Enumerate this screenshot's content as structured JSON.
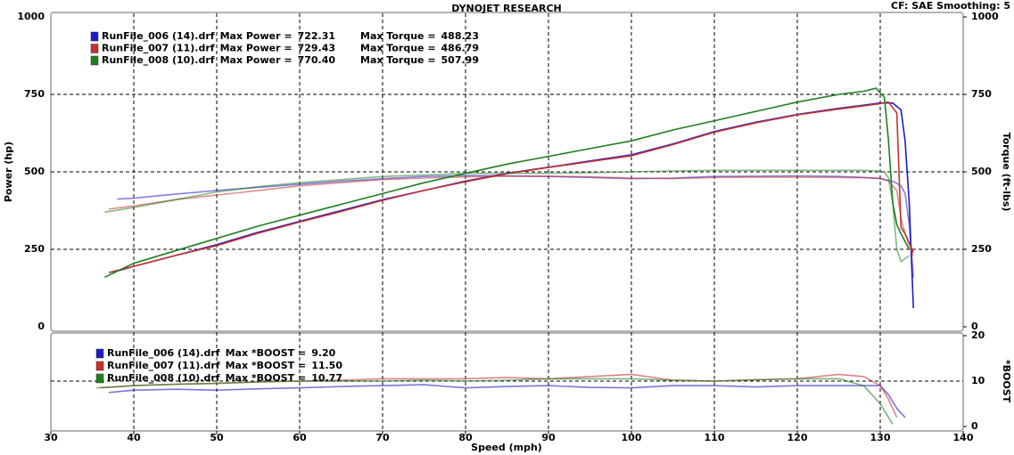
{
  "header": {
    "title": "DYNOJET RESEARCH",
    "settings": "CF: SAE  Smoothing: 5"
  },
  "chart_data": [
    {
      "type": "line",
      "y_label": "Power (hp)",
      "y2_label": "Torque (ft-lbs)",
      "xlim": [
        30,
        140
      ],
      "xticks": [
        40,
        50,
        60,
        70,
        80,
        90,
        100,
        110,
        120,
        130
      ],
      "ylim": [
        0,
        1000
      ],
      "yticks": [
        0,
        250,
        500,
        750,
        1000
      ],
      "y2lim": [
        0,
        1000
      ],
      "y2ticks": [
        0,
        250,
        500,
        750,
        1000
      ],
      "grid": true,
      "legend_labels": {
        "max_power": "Max Power =",
        "max_torque": "Max Torque ="
      },
      "series": [
        {
          "name": "RunFile_006 (14).drf",
          "color": "#1c1cc8",
          "max_power": 722.31,
          "max_torque": 488.23,
          "x": [
            38,
            40,
            45,
            50,
            55,
            60,
            65,
            70,
            75,
            80,
            85,
            90,
            95,
            100,
            105,
            110,
            115,
            120,
            125,
            128,
            130,
            131.5,
            132.5,
            133,
            133.5,
            134
          ],
          "values": [
            180,
            195,
            230,
            265,
            305,
            340,
            375,
            410,
            440,
            470,
            495,
            515,
            535,
            555,
            590,
            630,
            660,
            685,
            705,
            715,
            722,
            722,
            700,
            600,
            400,
            60
          ],
          "y2_values": [
            412,
            415,
            428,
            440,
            450,
            460,
            470,
            478,
            485,
            488,
            487,
            485,
            482,
            478,
            480,
            485,
            486,
            487,
            485,
            482,
            478,
            470,
            455,
            430,
            330,
            160
          ]
        },
        {
          "name": "RunFile_007 (11).drf",
          "color": "#c83030",
          "max_power": 729.43,
          "max_torque": 486.79,
          "x": [
            37,
            40,
            45,
            50,
            55,
            60,
            65,
            70,
            75,
            80,
            85,
            90,
            95,
            100,
            105,
            110,
            115,
            120,
            125,
            128,
            130,
            131,
            132,
            132.5,
            133,
            134
          ],
          "values": [
            175,
            195,
            230,
            262,
            302,
            338,
            372,
            408,
            440,
            468,
            494,
            514,
            533,
            552,
            588,
            628,
            658,
            684,
            703,
            713,
            720,
            725,
            690,
            320,
            300,
            240
          ],
          "y2_values": [
            380,
            390,
            410,
            425,
            440,
            455,
            465,
            475,
            480,
            484,
            486,
            486,
            484,
            480,
            478,
            482,
            483,
            483,
            482,
            481,
            480,
            470,
            440,
            350,
            300,
            230
          ]
        },
        {
          "name": "RunFile_008 (10).drf",
          "color": "#1f7f1f",
          "max_power": {
            "value": 770.4,
            "label": "770.40"
          },
          "max_torque": 507.99,
          "x": [
            36.5,
            40,
            45,
            50,
            55,
            60,
            65,
            70,
            75,
            80,
            85,
            90,
            95,
            100,
            105,
            110,
            115,
            120,
            125,
            128,
            129.5,
            130.5,
            131,
            131.5,
            132,
            132.5,
            133.5
          ],
          "values": [
            160,
            205,
            245,
            285,
            325,
            360,
            395,
            430,
            465,
            495,
            525,
            550,
            575,
            600,
            635,
            665,
            695,
            725,
            750,
            760,
            770,
            740,
            600,
            400,
            330,
            300,
            250
          ],
          "y2_values": [
            370,
            385,
            410,
            435,
            452,
            465,
            475,
            485,
            490,
            495,
            495,
            495,
            497,
            500,
            503,
            505,
            505,
            505,
            505,
            505,
            503,
            500,
            480,
            400,
            250,
            210,
            230
          ]
        }
      ]
    },
    {
      "type": "line",
      "x_label": "Speed (mph)",
      "y2_label": "*BOOST",
      "xlim": [
        30,
        140
      ],
      "xticks": [
        30,
        40,
        50,
        60,
        70,
        80,
        90,
        100,
        110,
        120,
        130,
        140
      ],
      "y2lim": [
        0,
        20
      ],
      "y2ticks": [
        0,
        10,
        20
      ],
      "grid": true,
      "legend_label": "Max *BOOST =",
      "series": [
        {
          "name": "RunFile_006 (14).drf",
          "color": "#1c1cc8",
          "axis": "y2",
          "max_value": {
            "value": 9.2,
            "label": "9.20"
          },
          "x": [
            37,
            40,
            45,
            50,
            55,
            60,
            65,
            70,
            75,
            80,
            85,
            90,
            95,
            100,
            105,
            110,
            115,
            120,
            125,
            130,
            131,
            132,
            133
          ],
          "values": [
            7.5,
            8,
            8.2,
            8,
            8.3,
            8.5,
            8.8,
            9,
            9.2,
            8.5,
            8.8,
            9,
            8.6,
            8.5,
            9,
            9,
            8.7,
            9,
            9,
            9,
            7,
            4,
            2
          ]
        },
        {
          "name": "RunFile_007 (11).drf",
          "color": "#c83030",
          "axis": "y2",
          "max_value": {
            "value": 11.5,
            "label": "11.50"
          },
          "x": [
            36,
            40,
            45,
            50,
            55,
            60,
            65,
            70,
            75,
            80,
            85,
            90,
            95,
            100,
            105,
            110,
            115,
            120,
            125,
            128,
            130,
            131,
            132
          ],
          "values": [
            8.5,
            9,
            9.3,
            9.5,
            9.8,
            10,
            10.2,
            10.5,
            10.5,
            10.5,
            10.8,
            10.5,
            11,
            11.5,
            10.2,
            10,
            10.3,
            10.5,
            11.5,
            11,
            9,
            6,
            2
          ]
        },
        {
          "name": "RunFile_008 (10).drf",
          "color": "#1f7f1f",
          "axis": "y2",
          "max_value": 10.77,
          "x": [
            35.5,
            40,
            45,
            50,
            55,
            60,
            65,
            70,
            75,
            80,
            85,
            90,
            95,
            100,
            105,
            110,
            115,
            120,
            125,
            128,
            130,
            131,
            131.5
          ],
          "values": [
            8.5,
            9,
            9.3,
            9.5,
            9.8,
            10,
            10,
            10,
            10.2,
            10,
            10.2,
            10.5,
            10.5,
            10.5,
            10.2,
            10,
            10.3,
            10.5,
            10.5,
            9,
            5,
            2,
            0.5
          ]
        }
      ]
    }
  ]
}
